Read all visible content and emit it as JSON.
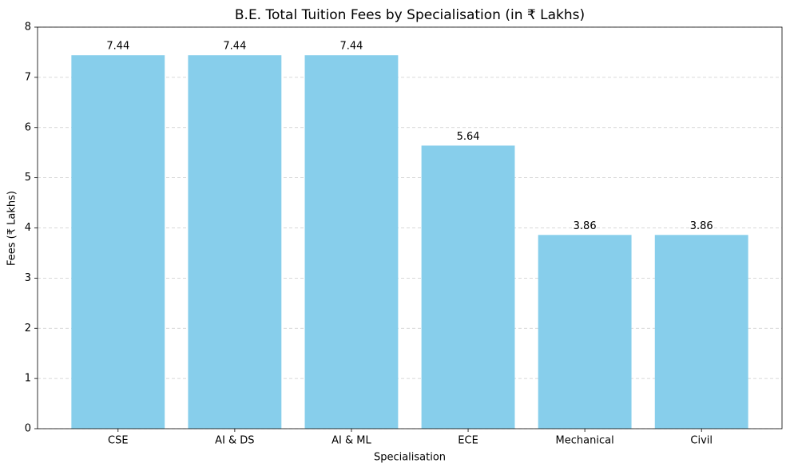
{
  "chart_data": {
    "type": "bar",
    "title": "B.E. Total Tuition Fees by Specialisation (in ₹ Lakhs)",
    "x_label": "Specialisation",
    "y_label": "Fees (₹ Lakhs)",
    "categories": [
      "CSE",
      "AI & DS",
      "AI & ML",
      "ECE",
      "Mechanical",
      "Civil"
    ],
    "values": [
      7.44,
      7.44,
      7.44,
      5.64,
      3.86,
      3.86
    ],
    "color": "#87ceeb",
    "ylim": [
      0,
      8
    ],
    "yticks": [
      0,
      1,
      2,
      3,
      4,
      5,
      6,
      7,
      8
    ],
    "grid": true
  }
}
